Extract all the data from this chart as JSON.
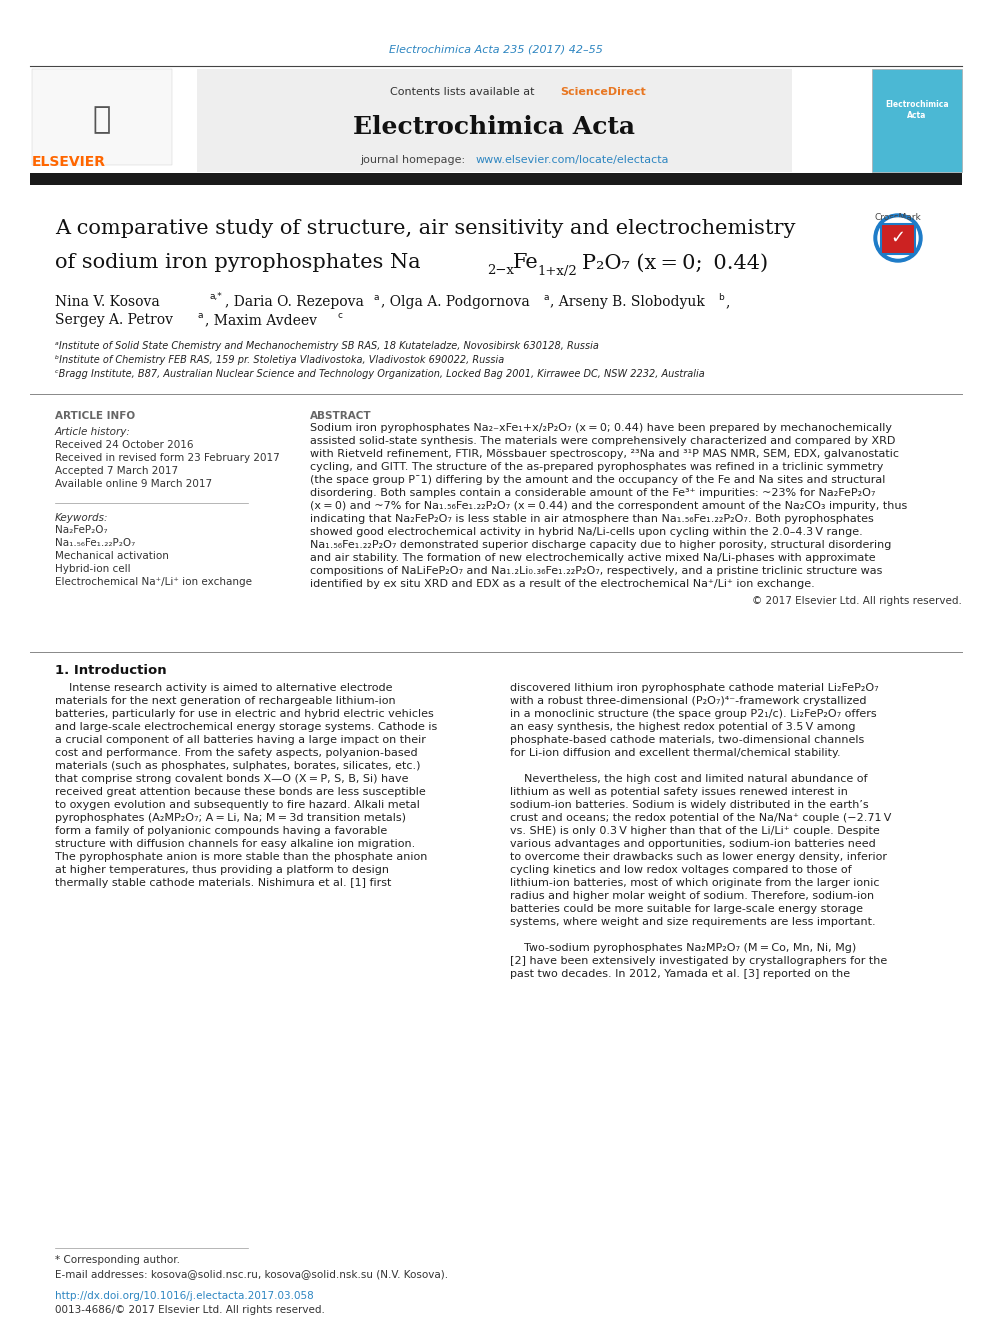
{
  "page_width": 9.92,
  "page_height": 13.23,
  "bg_color": "#ffffff",
  "top_citation": "Electrochimica Acta 235 (2017) 42–55",
  "top_citation_color": "#2e86c1",
  "header_bg": "#eeeeee",
  "journal_name": "Electrochimica Acta",
  "journal_homepage_url": "www.elsevier.com/locate/electacta",
  "link_color": "#2e86c1",
  "elsevier_color": "#FF6600",
  "sciencedirect_color": "#e87722",
  "thick_bar_color": "#1a1a1a",
  "section_article_info": "ARTICLE INFO",
  "section_abstract": "ABSTRACT",
  "article_history_title": "Article history:",
  "article_history": [
    "Received 24 October 2016",
    "Received in revised form 23 February 2017",
    "Accepted 7 March 2017",
    "Available online 9 March 2017"
  ],
  "keywords_title": "Keywords:",
  "keywords": [
    "Na₂FeP₂O₇",
    "Na₁.₅₆Fe₁.₂₂P₂O₇",
    "Mechanical activation",
    "Hybrid-ion cell",
    "Electrochemical Na⁺/Li⁺ ion exchange"
  ],
  "affil_a": "ᵃInstitute of Solid State Chemistry and Mechanochemistry SB RAS, 18 Kutateladze, Novosibirsk 630128, Russia",
  "affil_b": "ᵇInstitute of Chemistry FEB RAS, 159 pr. Stoletiya Vladivostoka, Vladivostok 690022, Russia",
  "affil_c": "ᶜBragg Institute, B87, Australian Nuclear Science and Technology Organization, Locked Bag 2001, Kirrawee DC, NSW 2232, Australia",
  "copyright": "© 2017 Elsevier Ltd. All rights reserved.",
  "footnote_corresponding": "* Corresponding author.",
  "footnote_email": "E-mail addresses: kosova@solid.nsc.ru, kosova@solid.nsk.su (N.V. Kosova).",
  "footer_doi": "http://dx.doi.org/10.1016/j.electacta.2017.03.058",
  "footer_issn": "0013-4686/© 2017 Elsevier Ltd. All rights reserved.",
  "abstract_lines": [
    "Sodium iron pyrophosphates Na₂₋xFe₁+x/₂P₂O₇ (x = 0; 0.44) have been prepared by mechanochemically",
    "assisted solid-state synthesis. The materials were comprehensively characterized and compared by XRD",
    "with Rietveld refinement, FTIR, Mössbauer spectroscopy, ²³Na and ³¹P MAS NMR, SEM, EDX, galvanostatic",
    "cycling, and GITT. The structure of the as-prepared pyrophosphates was refined in a triclinic symmetry",
    "(the space group P¯1) differing by the amount and the occupancy of the Fe and Na sites and structural",
    "disordering. Both samples contain a considerable amount of the Fe³⁺ impurities: ~23% for Na₂FeP₂O₇",
    "(x = 0) and ~7% for Na₁.₅₆Fe₁.₂₂P₂O₇ (x = 0.44) and the correspondent amount of the Na₂CO₃ impurity, thus",
    "indicating that Na₂FeP₂O₇ is less stable in air atmosphere than Na₁.₅₆Fe₁.₂₂P₂O₇. Both pyrophosphates",
    "showed good electrochemical activity in hybrid Na/Li-cells upon cycling within the 2.0–4.3 V range.",
    "Na₁.₅₆Fe₁.₂₂P₂O₇ demonstrated superior discharge capacity due to higher porosity, structural disordering",
    "and air stability. The formation of new electrochemically active mixed Na/Li-phases with approximate",
    "compositions of NaLiFeP₂O₇ and Na₁.₂Li₀.₃₆Fe₁.₂₂P₂O₇, respectively, and a pristine triclinic structure was",
    "identified by ex situ XRD and EDX as a result of the electrochemical Na⁺/Li⁺ ion exchange."
  ],
  "intro_col1_lines": [
    "    Intense research activity is aimed to alternative electrode",
    "materials for the next generation of rechargeable lithium-ion",
    "batteries, particularly for use in electric and hybrid electric vehicles",
    "and large-scale electrochemical energy storage systems. Cathode is",
    "a crucial component of all batteries having a large impact on their",
    "cost and performance. From the safety aspects, polyanion-based",
    "materials (such as phosphates, sulphates, borates, silicates, etc.)",
    "that comprise strong covalent bonds X—O (X = P, S, B, Si) have",
    "received great attention because these bonds are less susceptible",
    "to oxygen evolution and subsequently to fire hazard. Alkali metal",
    "pyrophosphates (A₂MP₂O₇; A = Li, Na; M = 3d transition metals)",
    "form a family of polyanionic compounds having a favorable",
    "structure with diffusion channels for easy alkaline ion migration.",
    "The pyrophosphate anion is more stable than the phosphate anion",
    "at higher temperatures, thus providing a platform to design",
    "thermally stable cathode materials. Nishimura et al. [1] first"
  ],
  "intro_col2_lines": [
    "discovered lithium iron pyrophosphate cathode material Li₂FeP₂O₇",
    "with a robust three-dimensional (P₂O₇)⁴⁻-framework crystallized",
    "in a monoclinic structure (the space group P2₁/c). Li₂FeP₂O₇ offers",
    "an easy synthesis, the highest redox potential of 3.5 V among",
    "phosphate-based cathode materials, two-dimensional channels",
    "for Li-ion diffusion and excellent thermal/chemical stability.",
    "",
    "    Nevertheless, the high cost and limited natural abundance of",
    "lithium as well as potential safety issues renewed interest in",
    "sodium-ion batteries. Sodium is widely distributed in the earth’s",
    "crust and oceans; the redox potential of the Na/Na⁺ couple (−2.71 V",
    "vs. SHE) is only 0.3 V higher than that of the Li/Li⁺ couple. Despite",
    "various advantages and opportunities, sodium-ion batteries need",
    "to overcome their drawbacks such as lower energy density, inferior",
    "cycling kinetics and low redox voltages compared to those of",
    "lithium-ion batteries, most of which originate from the larger ionic",
    "radius and higher molar weight of sodium. Therefore, sodium-ion",
    "batteries could be more suitable for large-scale energy storage",
    "systems, where weight and size requirements are less important.",
    "",
    "    Two-sodium pyrophosphates Na₂MP₂O₇ (M = Co, Mn, Ni, Mg)",
    "[2] have been extensively investigated by crystallographers for the",
    "past two decades. In 2012, Yamada et al. [3] reported on the"
  ]
}
